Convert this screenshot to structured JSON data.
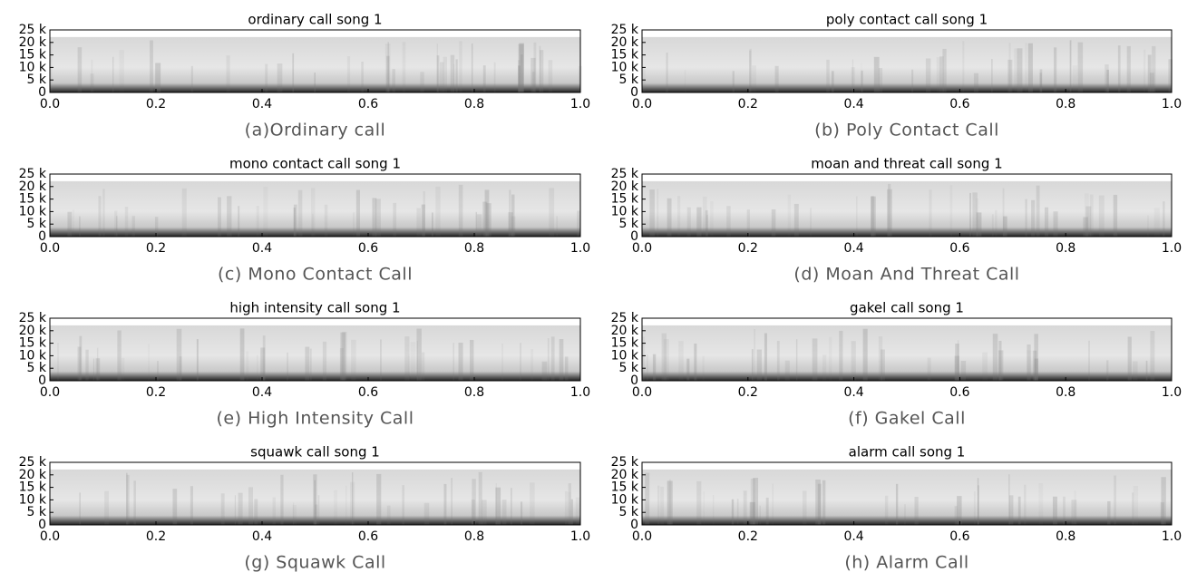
{
  "chart_data": [
    {
      "type": "spectrogram",
      "title": "ordinary call song 1",
      "caption": "(a)Ordinary call",
      "xlim": [
        0,
        1
      ],
      "xticks": [
        {
          "value": 0,
          "label": "0.0"
        },
        0.2,
        0.4,
        0.6,
        0.8,
        {
          "value": 1,
          "label": "1.0"
        }
      ],
      "ylim": [
        0,
        25000
      ],
      "yticks": [
        0,
        {
          "value": 5000,
          "label": "5 k"
        },
        {
          "value": 10000,
          "label": "10 k"
        },
        {
          "value": 15000,
          "label": "15 k"
        },
        {
          "value": 20000,
          "label": "20 k"
        },
        {
          "value": 25000,
          "label": "25 k"
        }
      ]
    },
    {
      "type": "spectrogram",
      "title": "poly contact call song 1",
      "caption": "(b) Poly Contact Call",
      "xlim": [
        0,
        1
      ],
      "xticks": [
        {
          "value": 0,
          "label": "0.0"
        },
        0.2,
        0.4,
        0.6,
        0.8,
        {
          "value": 1,
          "label": "1.0"
        }
      ],
      "ylim": [
        0,
        25000
      ],
      "yticks": [
        0,
        {
          "value": 5000,
          "label": "5 k"
        },
        {
          "value": 10000,
          "label": "10 k"
        },
        {
          "value": 15000,
          "label": "15 k"
        },
        {
          "value": 20000,
          "label": "20 k"
        },
        {
          "value": 25000,
          "label": "25 k"
        }
      ]
    },
    {
      "type": "spectrogram",
      "title": "mono contact call song 1",
      "caption": "(c) Mono Contact Call",
      "xlim": [
        0,
        1
      ],
      "xticks": [
        {
          "value": 0,
          "label": "0.0"
        },
        0.2,
        0.4,
        0.6,
        0.8,
        {
          "value": 1,
          "label": "1.0"
        }
      ],
      "ylim": [
        0,
        25000
      ],
      "yticks": [
        0,
        {
          "value": 5000,
          "label": "5 k"
        },
        {
          "value": 10000,
          "label": "10 k"
        },
        {
          "value": 15000,
          "label": "15 k"
        },
        {
          "value": 20000,
          "label": "20 k"
        },
        {
          "value": 25000,
          "label": "25 k"
        }
      ]
    },
    {
      "type": "spectrogram",
      "title": "moan and threat call song 1",
      "caption": "(d) Moan And Threat Call",
      "xlim": [
        0,
        1
      ],
      "xticks": [
        {
          "value": 0,
          "label": "0.0"
        },
        0.2,
        0.4,
        0.6,
        0.8,
        {
          "value": 1,
          "label": "1.0"
        }
      ],
      "ylim": [
        0,
        25000
      ],
      "yticks": [
        0,
        {
          "value": 5000,
          "label": "5 k"
        },
        {
          "value": 10000,
          "label": "10 k"
        },
        {
          "value": 15000,
          "label": "15 k"
        },
        {
          "value": 20000,
          "label": "20 k"
        },
        {
          "value": 25000,
          "label": "25 k"
        }
      ]
    },
    {
      "type": "spectrogram",
      "title": "high intensity call song 1",
      "caption": "(e) High Intensity Call",
      "xlim": [
        0,
        1
      ],
      "xticks": [
        {
          "value": 0,
          "label": "0.0"
        },
        0.2,
        0.4,
        0.6,
        0.8,
        {
          "value": 1,
          "label": "1.0"
        }
      ],
      "ylim": [
        0,
        25000
      ],
      "yticks": [
        0,
        {
          "value": 5000,
          "label": "5 k"
        },
        {
          "value": 10000,
          "label": "10 k"
        },
        {
          "value": 15000,
          "label": "15 k"
        },
        {
          "value": 20000,
          "label": "20 k"
        },
        {
          "value": 25000,
          "label": "25 k"
        }
      ]
    },
    {
      "type": "spectrogram",
      "title": "gakel call song 1",
      "caption": "(f) Gakel Call",
      "xlim": [
        0,
        1
      ],
      "xticks": [
        {
          "value": 0,
          "label": "0.0"
        },
        0.2,
        0.4,
        0.6,
        0.8,
        {
          "value": 1,
          "label": "1.0"
        }
      ],
      "ylim": [
        0,
        25000
      ],
      "yticks": [
        0,
        {
          "value": 5000,
          "label": "5 k"
        },
        {
          "value": 10000,
          "label": "10 k"
        },
        {
          "value": 15000,
          "label": "15 k"
        },
        {
          "value": 20000,
          "label": "20 k"
        },
        {
          "value": 25000,
          "label": "25 k"
        }
      ]
    },
    {
      "type": "spectrogram",
      "title": "squawk call song 1",
      "caption": "(g) Squawk Call",
      "xlim": [
        0,
        1
      ],
      "xticks": [
        {
          "value": 0,
          "label": "0.0"
        },
        0.2,
        0.4,
        0.6,
        0.8,
        {
          "value": 1,
          "label": "1.0"
        }
      ],
      "ylim": [
        0,
        25000
      ],
      "yticks": [
        0,
        {
          "value": 5000,
          "label": "5 k"
        },
        {
          "value": 10000,
          "label": "10 k"
        },
        {
          "value": 15000,
          "label": "15 k"
        },
        {
          "value": 20000,
          "label": "20 k"
        },
        {
          "value": 25000,
          "label": "25 k"
        }
      ]
    },
    {
      "type": "spectrogram",
      "title": "alarm call song 1",
      "caption": "(h) Alarm Call",
      "xlim": [
        0,
        1
      ],
      "xticks": [
        {
          "value": 0,
          "label": "0.0"
        },
        0.2,
        0.4,
        0.6,
        0.8,
        {
          "value": 1,
          "label": "1.0"
        }
      ],
      "ylim": [
        0,
        25000
      ],
      "yticks": [
        0,
        {
          "value": 5000,
          "label": "5 k"
        },
        {
          "value": 10000,
          "label": "10 k"
        },
        {
          "value": 15000,
          "label": "15 k"
        },
        {
          "value": 20000,
          "label": "20 k"
        },
        {
          "value": 25000,
          "label": "25 k"
        }
      ]
    }
  ]
}
